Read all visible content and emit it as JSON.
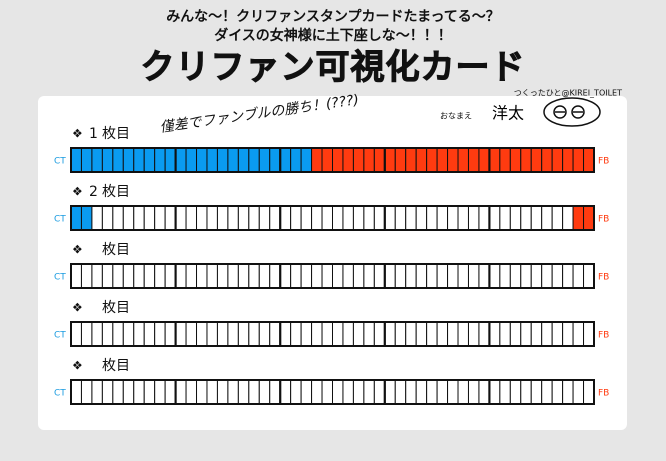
{
  "header": {
    "line1": "みんな〜！クリファンスタンプカードたまってる〜？",
    "line2": "ダイスの女神様に土下座しな〜！！！",
    "title": "クリファン可視化カード",
    "credit": "つくったひと@KIREI_TOILET"
  },
  "owner": {
    "label": "おなまえ",
    "name": "洋太"
  },
  "note": "僅差でファンブルの勝ち！(???)",
  "labels": {
    "bullet": "❖",
    "suffix": "枚目",
    "ct": "CT",
    "fb": "FB"
  },
  "cards": [
    {
      "number": "1",
      "ct": 23,
      "fb": 27
    },
    {
      "number": "2",
      "ct": 2,
      "fb": 2
    },
    {
      "ct": 0,
      "fb": 0
    },
    {
      "ct": 0,
      "fb": 0
    },
    {
      "ct": 0,
      "fb": 0
    }
  ]
}
